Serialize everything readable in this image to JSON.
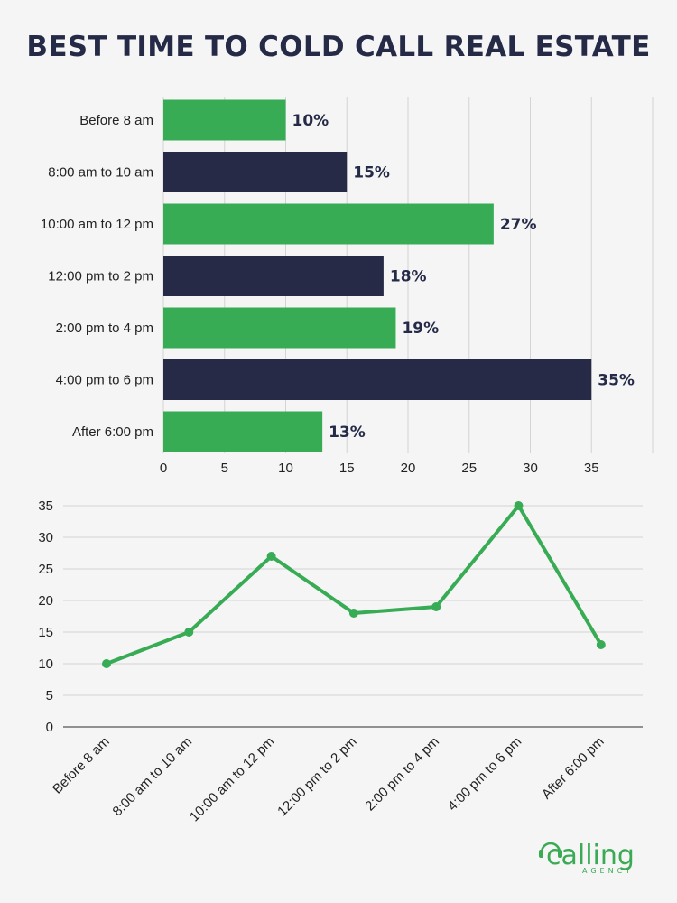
{
  "title": "BEST TIME TO COLD CALL REAL ESTATE",
  "colors": {
    "green": "#38ab55",
    "navy": "#262a46",
    "grid": "#d4d4d4"
  },
  "chart_data": [
    {
      "type": "bar",
      "orientation": "horizontal",
      "title": "BEST TIME TO COLD CALL REAL ESTATE",
      "categories": [
        "Before 8 am",
        "8:00 am to 10 am",
        "10:00 am to 12 pm",
        "12:00 pm to 2 pm",
        "2:00 pm to 4 pm",
        "4:00 pm to 6 pm",
        "After 6:00 pm"
      ],
      "values": [
        10,
        15,
        27,
        18,
        19,
        35,
        13
      ],
      "data_labels": [
        "10%",
        "15%",
        "27%",
        "18%",
        "19%",
        "35%",
        "13%"
      ],
      "bar_colors": [
        "#38ab55",
        "#262a46",
        "#38ab55",
        "#262a46",
        "#38ab55",
        "#262a46",
        "#38ab55"
      ],
      "xlim": [
        0,
        40
      ],
      "xticks": [
        0,
        5,
        10,
        15,
        20,
        25,
        30,
        35
      ],
      "grid": true
    },
    {
      "type": "line",
      "categories": [
        "Before 8 am",
        "8:00 am to 10 am",
        "10:00 am to 12 pm",
        "12:00 pm to 2 pm",
        "2:00 pm to 4 pm",
        "4:00 pm to 6 pm",
        "After 6:00 pm"
      ],
      "values": [
        10,
        15,
        27,
        18,
        19,
        35,
        13
      ],
      "color": "#38ab55",
      "ylim": [
        0,
        35
      ],
      "yticks": [
        0,
        5,
        10,
        15,
        20,
        25,
        30,
        35
      ],
      "grid": true
    }
  ],
  "logo": {
    "name": "calling",
    "sub": "AGENCY"
  }
}
